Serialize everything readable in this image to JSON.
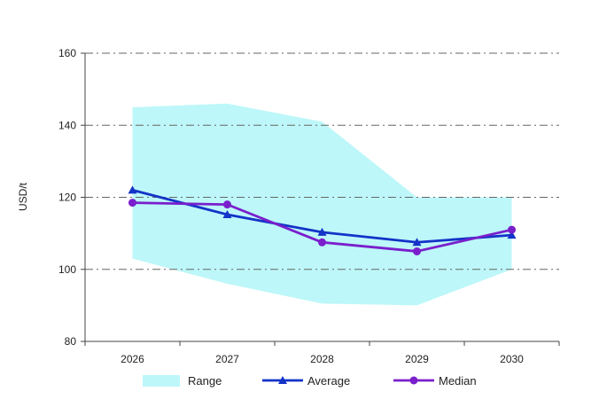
{
  "chart_data": {
    "type": "line",
    "categories": [
      "2026",
      "2027",
      "2028",
      "2029",
      "2030"
    ],
    "ylabel": "USD/t",
    "ylim": [
      80,
      160
    ],
    "yticks": [
      80,
      100,
      120,
      140,
      160
    ],
    "grid": true,
    "legend_position": "bottom",
    "range": {
      "name": "Range",
      "color": "#bdf7f9",
      "upper": [
        145,
        146,
        141,
        120,
        120
      ],
      "lower": [
        103,
        96,
        90.5,
        90,
        100
      ]
    },
    "series": [
      {
        "name": "Average",
        "color": "#1433c8",
        "marker": "triangle",
        "values": [
          122,
          115.2,
          110.3,
          107.5,
          109.5
        ]
      },
      {
        "name": "Median",
        "color": "#7a1fcc",
        "marker": "circle",
        "values": [
          118.5,
          118,
          107.5,
          105,
          111
        ]
      }
    ]
  }
}
